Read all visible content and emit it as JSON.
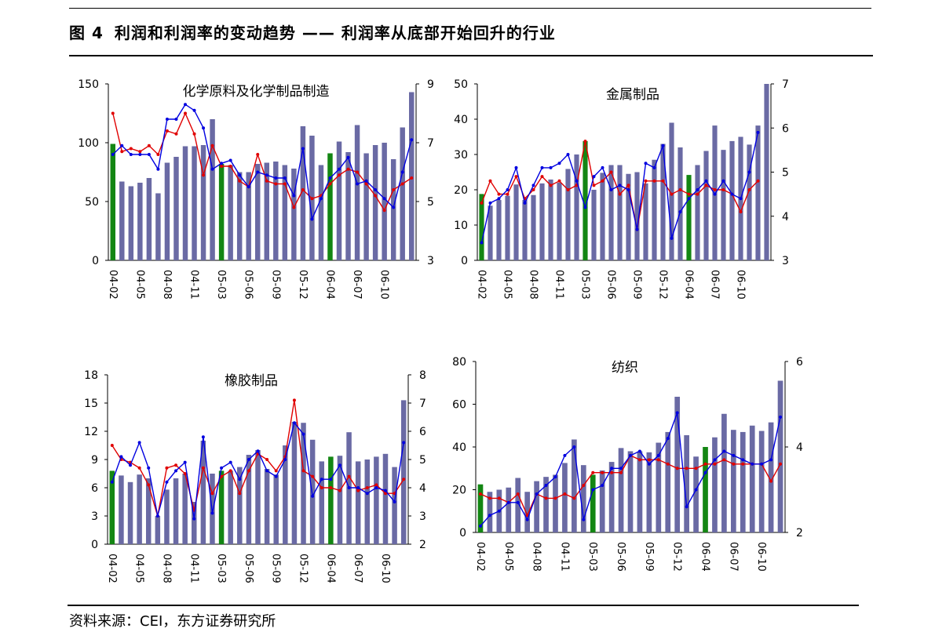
{
  "header": {
    "figure_label": "图 4",
    "figure_title": "利润和利润率的变动趋势 —— 利润率从底部开始回升的行业"
  },
  "footer": {
    "source": "资料来源：CEI，东方证券研究所"
  },
  "colors": {
    "bar": "#6a6aa4",
    "bar_highlight": "#138613",
    "line_blue": "#0000e0",
    "line_red": "#e00000"
  },
  "chart_data": [
    {
      "type": "bar",
      "title": "化学原料及化学制品制造",
      "categories_shown": [
        "04-02",
        "04-05",
        "04-08",
        "04-11",
        "05-03",
        "05-06",
        "05-09",
        "05-12",
        "06-04",
        "06-07",
        "06-10"
      ],
      "ylim": [
        0,
        150
      ],
      "yticks": [
        "0",
        "50",
        "100",
        "150"
      ],
      "y2lim": [
        3,
        9
      ],
      "y2ticks": [
        "3",
        "5",
        "7",
        "9"
      ],
      "highlight_bars": [
        0,
        12,
        24
      ],
      "bars": [
        99,
        67,
        63,
        66,
        70,
        57,
        83,
        88,
        97,
        97,
        98,
        120,
        82,
        81,
        75,
        75,
        82,
        83,
        84,
        81,
        78,
        114,
        106,
        81,
        91,
        101,
        92,
        115,
        91,
        98,
        100,
        86,
        113,
        143
      ],
      "line_blue": [
        6.6,
        6.9,
        6.6,
        6.6,
        6.6,
        6.1,
        7.8,
        7.8,
        8.3,
        8.1,
        7.5,
        6.1,
        6.3,
        6.4,
        5.9,
        5.5,
        6.0,
        5.9,
        5.8,
        5.8,
        5.2,
        6.8,
        4.4,
        5.1,
        5.8,
        6.1,
        6.5,
        5.6,
        5.7,
        5.4,
        5.1,
        4.8,
        6.0,
        7.1
      ],
      "line_red": [
        8.0,
        6.7,
        6.8,
        6.7,
        6.9,
        6.6,
        7.4,
        7.3,
        8.0,
        7.3,
        5.9,
        6.9,
        6.2,
        6.2,
        5.7,
        5.5,
        6.6,
        5.7,
        5.6,
        5.6,
        4.8,
        5.4,
        5.1,
        5.2,
        5.6,
        5.9,
        6.1,
        6.0,
        5.6,
        5.2,
        4.7,
        5.4,
        5.6,
        5.8
      ]
    },
    {
      "type": "bar",
      "title": "金属制品",
      "categories_shown": [
        "04-02",
        "04-05",
        "04-08",
        "04-11",
        "05-03",
        "05-06",
        "05-09",
        "05-12",
        "06-04",
        "06-07",
        "06-10"
      ],
      "ylim": [
        0,
        50
      ],
      "yticks": [
        "0",
        "10",
        "20",
        "30",
        "40",
        "50"
      ],
      "y2lim": [
        3,
        7
      ],
      "y2ticks": [
        "3",
        "4",
        "5",
        "6",
        "7"
      ],
      "highlight_bars": [
        0,
        12,
        24
      ],
      "bars": [
        18.8,
        15.5,
        17.1,
        18.3,
        21.5,
        17.1,
        18.5,
        21.8,
        22.9,
        22.0,
        25.9,
        30.0,
        33.8,
        20.0,
        24.8,
        27.0,
        27.0,
        24.5,
        25.0,
        21.8,
        28.5,
        33.0,
        39.0,
        32.0,
        24.2,
        27.0,
        31.0,
        38.2,
        31.3,
        33.8,
        35.0,
        32.8,
        38.2,
        50.0
      ],
      "line_blue": [
        3.4,
        4.3,
        4.4,
        4.6,
        5.1,
        4.3,
        4.7,
        5.1,
        5.1,
        5.2,
        5.4,
        4.8,
        4.2,
        4.9,
        5.1,
        4.6,
        4.7,
        4.6,
        3.7,
        5.2,
        5.1,
        5.6,
        3.5,
        4.1,
        4.4,
        4.6,
        4.8,
        4.5,
        4.8,
        4.5,
        4.4,
        5.0,
        5.9
      ],
      "line_red": [
        4.3,
        4.8,
        4.5,
        4.5,
        4.9,
        4.4,
        4.6,
        4.9,
        4.7,
        4.8,
        4.6,
        4.7,
        5.7,
        4.7,
        4.8,
        5.0,
        4.5,
        4.7,
        3.7,
        4.8,
        4.8,
        4.8,
        4.5,
        4.6,
        4.5,
        4.5,
        4.7,
        4.6,
        4.6,
        4.5,
        4.1,
        4.6,
        4.8
      ]
    },
    {
      "type": "bar",
      "title": "橡胶制品",
      "categories_shown": [
        "04-02",
        "04-05",
        "04-08",
        "04-11",
        "05-03",
        "05-06",
        "05-09",
        "05-12",
        "06-04",
        "06-07",
        "06-10"
      ],
      "ylim": [
        0,
        18
      ],
      "yticks": [
        "0",
        "3",
        "6",
        "9",
        "12",
        "15",
        "18"
      ],
      "y2lim": [
        2,
        8
      ],
      "y2ticks": [
        "2",
        "3",
        "4",
        "5",
        "6",
        "7",
        "8"
      ],
      "highlight_bars": [
        0,
        12,
        24
      ],
      "bars": [
        7.8,
        7.3,
        6.6,
        7.4,
        7.0,
        3.0,
        5.8,
        7.0,
        7.5,
        4.5,
        11.0,
        7.5,
        7.8,
        7.8,
        8.2,
        9.5,
        10.0,
        8.0,
        7.4,
        10.5,
        13.0,
        12.9,
        11.1,
        8.8,
        9.3,
        9.4,
        11.9,
        8.8,
        9.0,
        9.3,
        9.6,
        8.2,
        15.3
      ],
      "line_blue": [
        4.2,
        5.1,
        4.8,
        5.6,
        4.7,
        3.0,
        4.2,
        4.6,
        4.9,
        2.9,
        5.8,
        3.1,
        4.7,
        4.9,
        4.3,
        5.0,
        5.3,
        4.6,
        4.4,
        5.0,
        6.3,
        5.9,
        3.7,
        4.3,
        4.3,
        4.8,
        4.0,
        4.0,
        3.8,
        4.0,
        3.9,
        3.5,
        5.6
      ],
      "line_red": [
        5.5,
        5.0,
        4.9,
        4.7,
        4.1,
        3.0,
        4.7,
        4.8,
        4.5,
        3.2,
        4.7,
        3.8,
        4.4,
        4.6,
        3.8,
        4.6,
        5.2,
        5.0,
        4.6,
        5.1,
        7.1,
        4.6,
        4.4,
        4.0,
        4.0,
        3.9,
        4.4,
        3.9,
        4.0,
        4.1,
        3.8,
        3.8,
        4.3
      ]
    },
    {
      "type": "bar",
      "title": "纺织",
      "categories_shown": [
        "04-02",
        "04-05",
        "04-08",
        "04-11",
        "05-03",
        "05-06",
        "05-09",
        "05-12",
        "06-04",
        "06-07",
        "06-10"
      ],
      "ylim": [
        0,
        80
      ],
      "yticks": [
        "0",
        "20",
        "40",
        "60",
        "80"
      ],
      "y2lim": [
        2,
        6
      ],
      "y2ticks": [
        "2",
        "4",
        "6"
      ],
      "highlight_bars": [
        0,
        12,
        24
      ],
      "bars": [
        22.5,
        19.0,
        20.0,
        21.0,
        25.5,
        19.0,
        24.0,
        26.0,
        27.0,
        32.5,
        43.5,
        31.5,
        27.0,
        29.0,
        33.0,
        39.5,
        38.0,
        38.0,
        37.5,
        42.0,
        47.0,
        63.5,
        45.5,
        35.5,
        40.0,
        44.5,
        55.5,
        48.0,
        47.0,
        50.0,
        47.5,
        51.5,
        71.0
      ],
      "line_blue": [
        2.15,
        2.4,
        2.5,
        2.7,
        2.7,
        2.3,
        2.9,
        3.1,
        3.3,
        3.8,
        4.0,
        2.3,
        3.0,
        3.1,
        3.5,
        3.5,
        3.8,
        3.9,
        3.6,
        3.8,
        4.2,
        4.8,
        2.6,
        3.0,
        3.4,
        3.7,
        3.9,
        3.8,
        3.7,
        3.6,
        3.6,
        3.7,
        4.7
      ],
      "line_red": [
        2.9,
        2.8,
        2.8,
        2.7,
        2.9,
        2.4,
        2.9,
        2.8,
        2.8,
        2.9,
        2.8,
        3.1,
        3.4,
        3.4,
        3.4,
        3.4,
        3.8,
        3.7,
        3.7,
        3.7,
        3.6,
        3.5,
        3.5,
        3.5,
        3.6,
        3.6,
        3.7,
        3.6,
        3.6,
        3.6,
        3.6,
        3.2,
        3.6
      ]
    }
  ]
}
